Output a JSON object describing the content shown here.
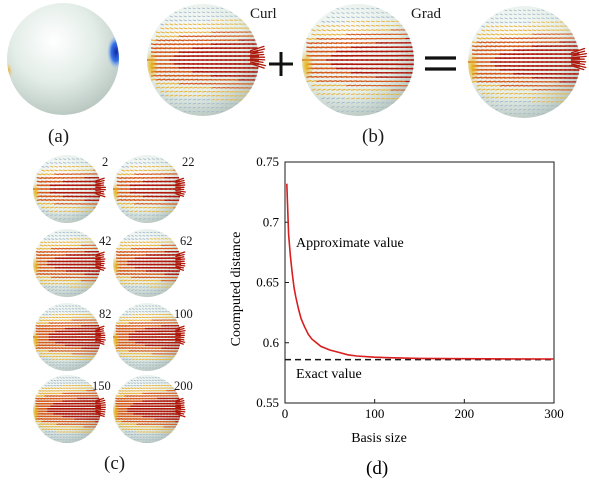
{
  "panels": {
    "a": {
      "caption": "(a)"
    },
    "b": {
      "caption": "(b)",
      "label_curl": "Curl",
      "label_grad": "Grad",
      "op_plus": "+",
      "op_equals": "="
    },
    "c": {
      "caption": "(c)",
      "thumb_labels": [
        "2",
        "22",
        "42",
        "62",
        "82",
        "100",
        "150",
        "200"
      ]
    },
    "d": {
      "caption": "(d)"
    }
  },
  "colors": {
    "field_dark": "#b0180c",
    "field_mid": "#d65a1c",
    "field_light": "#e9b23b",
    "sphere": "#e6efe9",
    "curve": "#d81e1e",
    "hot_blue": "#1640c8",
    "hot_yellow": "#e7b21a"
  },
  "chart_data": {
    "type": "line",
    "xlabel": "Basis size",
    "ylabel": "Coomputed distance",
    "xlim": [
      0,
      300
    ],
    "ylim": [
      0.55,
      0.75
    ],
    "xticks": [
      "0",
      "100",
      "200",
      "300"
    ],
    "yticks": [
      "0.55",
      "0.6",
      "0.65",
      "0.7",
      "0.75"
    ],
    "series": [
      {
        "name": "Approximate value",
        "x": [
          2,
          4,
          6,
          8,
          10,
          12,
          15,
          18,
          22,
          26,
          30,
          35,
          40,
          50,
          60,
          70,
          80,
          100,
          120,
          150,
          200,
          250,
          300
        ],
        "y": [
          0.732,
          0.69,
          0.672,
          0.658,
          0.646,
          0.638,
          0.628,
          0.62,
          0.613,
          0.607,
          0.603,
          0.6,
          0.597,
          0.594,
          0.592,
          0.59,
          0.589,
          0.588,
          0.5875,
          0.587,
          0.5868,
          0.5866,
          0.5865
        ]
      },
      {
        "name": "Exact value",
        "x": [
          0,
          300
        ],
        "y": [
          0.586,
          0.586
        ]
      }
    ],
    "annotations": [
      "Approximate value",
      "Exact value"
    ]
  }
}
